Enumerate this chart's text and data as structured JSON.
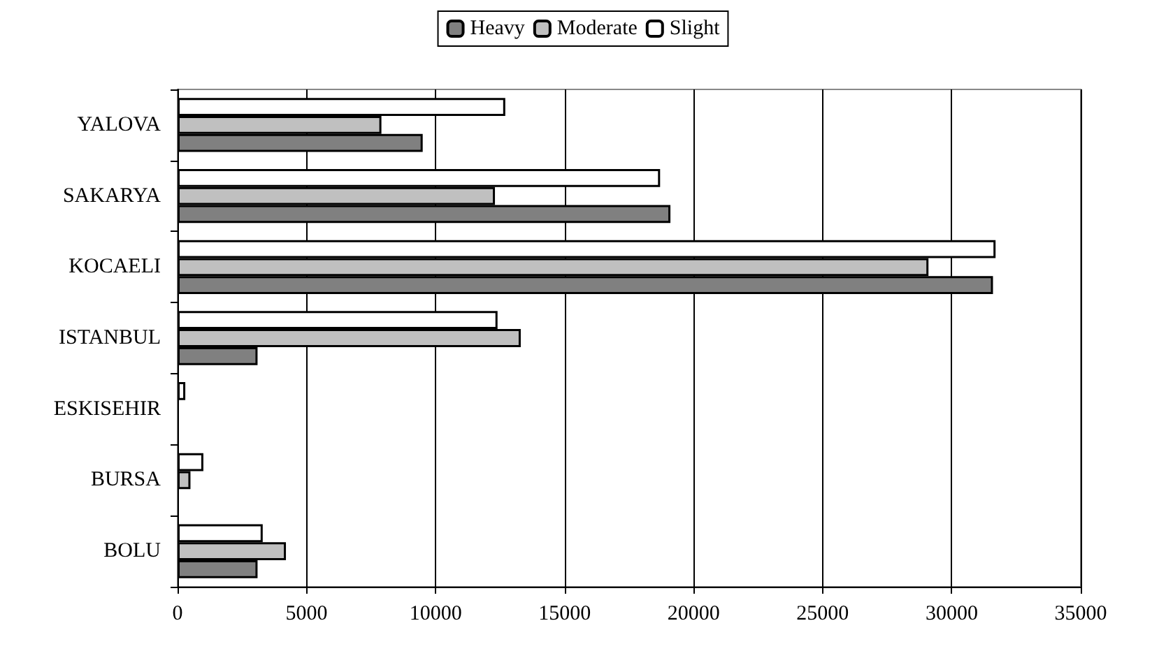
{
  "chart_data": {
    "type": "bar",
    "orientation": "horizontal",
    "categories": [
      "YALOVA",
      "SAKARYA",
      "KOCAELI",
      "ISTANBUL",
      "ESKISEHIR",
      "BURSA",
      "BOLU"
    ],
    "series": [
      {
        "name": "Heavy",
        "color": "#808080",
        "values": [
          9500,
          19100,
          31600,
          3100,
          null,
          null,
          3100
        ]
      },
      {
        "name": "Moderate",
        "color": "#c0c0c0",
        "values": [
          7900,
          12300,
          29100,
          13300,
          null,
          500,
          4200
        ]
      },
      {
        "name": "Slight",
        "color": "#ffffff",
        "values": [
          12700,
          18700,
          31700,
          12400,
          300,
          1000,
          3300
        ]
      }
    ],
    "xlim": [
      0,
      35000
    ],
    "xticks": [
      0,
      5000,
      10000,
      15000,
      20000,
      25000,
      30000,
      35000
    ],
    "grid": "x",
    "legend": "top"
  }
}
